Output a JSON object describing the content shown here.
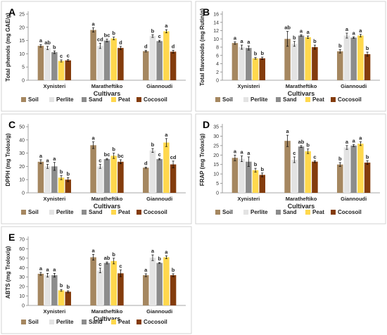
{
  "colors": {
    "Soil": "#a58760",
    "Perlite": "#e3e3e3",
    "Sand": "#8c8c8c",
    "Peat": "#ffd84d",
    "Cocosoil": "#843c0c"
  },
  "chart_data": [
    {
      "panel": "A",
      "type": "bar",
      "categories": [
        "Xynisteri",
        "Maratheftiko",
        "Giannoudi"
      ],
      "xlabel": "Cultivars",
      "ylabel": "Total phenols (mg GAE/g)",
      "ylim": [
        0,
        25
      ],
      "yticks": [
        0,
        5,
        10,
        15,
        20,
        25
      ],
      "grid": false,
      "legend": "bottom",
      "series": [
        {
          "name": "Soil",
          "values": [
            13,
            19,
            11
          ],
          "errors": [
            0.5,
            0.8,
            0.3
          ],
          "letters": [
            "a",
            "a",
            "d"
          ]
        },
        {
          "name": "Perlite",
          "values": [
            12.2,
            13,
            16.7
          ],
          "errors": [
            0.6,
            1.0,
            0.5
          ],
          "letters": [
            "ab",
            "cd",
            "b"
          ]
        },
        {
          "name": "Sand",
          "values": [
            10.6,
            15,
            14.8
          ],
          "errors": [
            0.5,
            0.5,
            0.3
          ],
          "letters": [
            "b",
            "bc",
            "c"
          ]
        },
        {
          "name": "Peat",
          "values": [
            7.3,
            15.8,
            18.5
          ],
          "errors": [
            0.4,
            0.5,
            0.6
          ],
          "letters": [
            "c",
            "b",
            "a"
          ]
        },
        {
          "name": "Cocosoil",
          "values": [
            7.5,
            12.2,
            10.8
          ],
          "errors": [
            0.3,
            0.6,
            0.5
          ],
          "letters": [
            "c",
            "d",
            "d"
          ]
        }
      ]
    },
    {
      "panel": "B",
      "type": "bar",
      "categories": [
        "Xynisteri",
        "Maratheftiko",
        "Giannoudi"
      ],
      "xlabel": "Cultivars",
      "ylabel": "Total flavonoids (mg Rutin/g)",
      "ylim": [
        0,
        16
      ],
      "yticks": [
        0,
        2,
        4,
        6,
        8,
        10,
        12,
        14,
        16
      ],
      "grid": false,
      "legend": "bottom",
      "series": [
        {
          "name": "Soil",
          "values": [
            9,
            10,
            7
          ],
          "errors": [
            0.3,
            1.8,
            0.4
          ],
          "letters": [
            "a",
            "ab",
            "b"
          ]
        },
        {
          "name": "Perlite",
          "values": [
            8,
            8.8,
            10.8
          ],
          "errors": [
            0.5,
            0.6,
            0.6
          ],
          "letters": [
            "a",
            "b",
            "a"
          ]
        },
        {
          "name": "Sand",
          "values": [
            7.8,
            10.8,
            10.3
          ],
          "errors": [
            0.5,
            0.2,
            0.2
          ],
          "letters": [
            "a",
            "a",
            "a"
          ]
        },
        {
          "name": "Peat",
          "values": [
            5.3,
            10.4,
            10.8
          ],
          "errors": [
            0.2,
            0.3,
            0.3
          ],
          "letters": [
            "b",
            "a",
            "a"
          ]
        },
        {
          "name": "Cocosoil",
          "values": [
            5.3,
            8,
            6.3
          ],
          "errors": [
            0.3,
            0.5,
            0.5
          ],
          "letters": [
            "b",
            "b",
            "b"
          ]
        }
      ]
    },
    {
      "panel": "C",
      "type": "bar",
      "categories": [
        "Xynisteri",
        "Maratheftiko",
        "Giannoudi"
      ],
      "xlabel": "Cultivars",
      "ylabel": "DPPH (mg Trolox/g)",
      "ylim": [
        0,
        50
      ],
      "yticks": [
        0,
        10,
        20,
        30,
        40,
        50
      ],
      "grid": false,
      "legend": "bottom",
      "series": [
        {
          "name": "Soil",
          "values": [
            23.5,
            36,
            19
          ],
          "errors": [
            1.5,
            2.5,
            0.5
          ],
          "letters": [
            "a",
            "a",
            "d"
          ]
        },
        {
          "name": "Perlite",
          "values": [
            20,
            20,
            32
          ],
          "errors": [
            1.5,
            1.5,
            1.5
          ],
          "letters": [
            "a",
            "c",
            "b"
          ]
        },
        {
          "name": "Sand",
          "values": [
            20,
            25.5,
            25.5
          ],
          "errors": [
            3,
            0.5,
            0.5
          ],
          "letters": [
            "a",
            "bc",
            "c"
          ]
        },
        {
          "name": "Peat",
          "values": [
            11.5,
            28,
            38
          ],
          "errors": [
            1.5,
            2,
            3
          ],
          "letters": [
            "b",
            "b",
            "a"
          ]
        },
        {
          "name": "Cocosoil",
          "values": [
            10,
            23.5,
            21.5
          ],
          "errors": [
            1.5,
            1.5,
            2.5
          ],
          "letters": [
            "b",
            "bc",
            "cd"
          ]
        }
      ]
    },
    {
      "panel": "D",
      "type": "bar",
      "categories": [
        "Xynisteri",
        "Maratheftiko",
        "Giannoudi"
      ],
      "xlabel": "Cultivars",
      "ylabel": "FRAP (mg Trolox/g)",
      "ylim": [
        0,
        35
      ],
      "yticks": [
        0,
        5,
        10,
        15,
        20,
        25,
        30,
        35
      ],
      "grid": false,
      "legend": "bottom",
      "series": [
        {
          "name": "Soil",
          "values": [
            18.5,
            27.5,
            15
          ],
          "errors": [
            1.5,
            3,
            1
          ],
          "letters": [
            "a",
            "a",
            "b"
          ]
        },
        {
          "name": "Perlite",
          "values": [
            18,
            17.5,
            24
          ],
          "errors": [
            1.5,
            1.5,
            1
          ],
          "letters": [
            "a",
            "c",
            "a"
          ]
        },
        {
          "name": "Sand",
          "values": [
            16.5,
            24.5,
            25
          ],
          "errors": [
            2.5,
            0.5,
            0.5
          ],
          "letters": [
            "a",
            "ab",
            "a"
          ]
        },
        {
          "name": "Peat",
          "values": [
            12,
            22,
            26
          ],
          "errors": [
            1,
            1.2,
            1
          ],
          "letters": [
            "b",
            "b",
            "a"
          ]
        },
        {
          "name": "Cocosoil",
          "values": [
            9.5,
            16.5,
            16
          ],
          "errors": [
            1,
            0.5,
            1
          ],
          "letters": [
            "b",
            "c",
            "b"
          ]
        }
      ]
    },
    {
      "panel": "E",
      "type": "bar",
      "categories": [
        "Xynisteri",
        "Maratheftiko",
        "Giannoudi"
      ],
      "xlabel": "Cultivars",
      "ylabel": "ABTS (mg Trolox/g)",
      "ylim": [
        0,
        70
      ],
      "yticks": [
        0,
        10,
        20,
        30,
        40,
        50,
        60,
        70
      ],
      "grid": false,
      "legend": "bottom",
      "series": [
        {
          "name": "Soil",
          "values": [
            33.5,
            51,
            32
          ],
          "errors": [
            1.5,
            3,
            1.5
          ],
          "letters": [
            "a",
            "a",
            "a"
          ]
        },
        {
          "name": "Perlite",
          "values": [
            32,
            37,
            50.5
          ],
          "errors": [
            2,
            2.5,
            3
          ],
          "letters": [
            "a",
            "c",
            "a"
          ]
        },
        {
          "name": "Sand",
          "values": [
            32,
            45,
            45
          ],
          "errors": [
            2,
            1,
            0.5
          ],
          "letters": [
            "a",
            "ab",
            "b"
          ]
        },
        {
          "name": "Peat",
          "values": [
            16,
            47,
            51
          ],
          "errors": [
            1,
            3,
            1.5
          ],
          "letters": [
            "b",
            "b",
            "a"
          ]
        },
        {
          "name": "Cocosoil",
          "values": [
            14.5,
            34,
            32
          ],
          "errors": [
            1,
            3.5,
            1.5
          ],
          "letters": [
            "b",
            "c",
            "b"
          ]
        }
      ]
    }
  ]
}
